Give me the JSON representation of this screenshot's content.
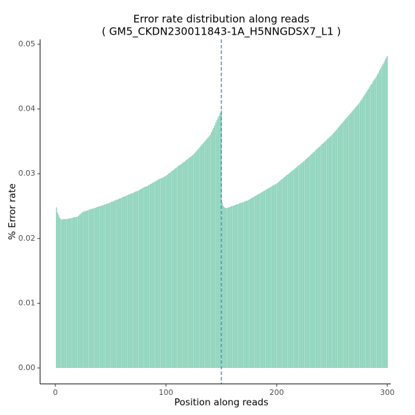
{
  "chart_data": {
    "type": "bar",
    "title": "Error rate distribution along reads",
    "subtitle": "( GM5_CKDN230011843-1A_H5NNGDSX7_L1 )",
    "xlabel": "Position along reads",
    "ylabel": "% Error rate",
    "color": "#8dd3bb",
    "vline": 150,
    "vline_color": "#3a80c8",
    "xlim": [
      -13.75,
      303.125
    ],
    "ylim": [
      -0.00246,
      0.05075
    ],
    "xticks": [
      0,
      100,
      200,
      300
    ],
    "yticks": [
      {
        "value": 0,
        "label": "0.00"
      },
      0.01,
      0.02,
      0.03,
      0.04,
      0.05
    ],
    "x": [
      1,
      2,
      3,
      4,
      5,
      6,
      7,
      8,
      9,
      10,
      11,
      12,
      13,
      14,
      15,
      16,
      17,
      18,
      19,
      20,
      21,
      22,
      23,
      24,
      25,
      26,
      27,
      28,
      29,
      30,
      31,
      32,
      33,
      34,
      35,
      36,
      37,
      38,
      39,
      40,
      41,
      42,
      43,
      44,
      45,
      46,
      47,
      48,
      49,
      50,
      51,
      52,
      53,
      54,
      55,
      56,
      57,
      58,
      59,
      60,
      61,
      62,
      63,
      64,
      65,
      66,
      67,
      68,
      69,
      70,
      71,
      72,
      73,
      74,
      75,
      76,
      77,
      78,
      79,
      80,
      81,
      82,
      83,
      84,
      85,
      86,
      87,
      88,
      89,
      90,
      91,
      92,
      93,
      94,
      95,
      96,
      97,
      98,
      99,
      100,
      101,
      102,
      103,
      104,
      105,
      106,
      107,
      108,
      109,
      110,
      111,
      112,
      113,
      114,
      115,
      116,
      117,
      118,
      119,
      120,
      121,
      122,
      123,
      124,
      125,
      126,
      127,
      128,
      129,
      130,
      131,
      132,
      133,
      134,
      135,
      136,
      137,
      138,
      139,
      140,
      141,
      142,
      143,
      144,
      145,
      146,
      147,
      148,
      149,
      150,
      151,
      152,
      153,
      154,
      155,
      156,
      157,
      158,
      159,
      160,
      161,
      162,
      163,
      164,
      165,
      166,
      167,
      168,
      169,
      170,
      171,
      172,
      173,
      174,
      175,
      176,
      177,
      178,
      179,
      180,
      181,
      182,
      183,
      184,
      185,
      186,
      187,
      188,
      189,
      190,
      191,
      192,
      193,
      194,
      195,
      196,
      197,
      198,
      199,
      200,
      201,
      202,
      203,
      204,
      205,
      206,
      207,
      208,
      209,
      210,
      211,
      212,
      213,
      214,
      215,
      216,
      217,
      218,
      219,
      220,
      221,
      222,
      223,
      224,
      225,
      226,
      227,
      228,
      229,
      230,
      231,
      232,
      233,
      234,
      235,
      236,
      237,
      238,
      239,
      240,
      241,
      242,
      243,
      244,
      245,
      246,
      247,
      248,
      249,
      250,
      251,
      252,
      253,
      254,
      255,
      256,
      257,
      258,
      259,
      260,
      261,
      262,
      263,
      264,
      265,
      266,
      267,
      268,
      269,
      270,
      271,
      272,
      273,
      274,
      275,
      276,
      277,
      278,
      279,
      280,
      281,
      282,
      283,
      284,
      285,
      286,
      287,
      288,
      289,
      290,
      291,
      292,
      293,
      294,
      295,
      296,
      297,
      298,
      299,
      300
    ],
    "values": [
      0.0248,
      0.024,
      0.0236,
      0.0232,
      0.023,
      0.0229,
      0.023,
      0.023,
      0.023,
      0.023,
      0.023,
      0.0231,
      0.0231,
      0.0231,
      0.0232,
      0.0232,
      0.0233,
      0.0233,
      0.0233,
      0.0234,
      0.0235,
      0.0237,
      0.0238,
      0.024,
      0.0241,
      0.0242,
      0.0242,
      0.0243,
      0.0243,
      0.0244,
      0.0245,
      0.0245,
      0.0246,
      0.0246,
      0.0247,
      0.0247,
      0.0248,
      0.0249,
      0.0249,
      0.025,
      0.025,
      0.0251,
      0.0251,
      0.0252,
      0.0253,
      0.0253,
      0.0254,
      0.0254,
      0.0255,
      0.0256,
      0.0257,
      0.0257,
      0.0258,
      0.0259,
      0.026,
      0.026,
      0.0261,
      0.0262,
      0.0262,
      0.0263,
      0.0264,
      0.0265,
      0.0265,
      0.0266,
      0.0267,
      0.0268,
      0.0268,
      0.0269,
      0.027,
      0.027,
      0.0271,
      0.0272,
      0.0273,
      0.0273,
      0.0274,
      0.0275,
      0.0276,
      0.0277,
      0.0278,
      0.0279,
      0.028,
      0.028,
      0.0281,
      0.0282,
      0.0283,
      0.0284,
      0.0285,
      0.0286,
      0.0287,
      0.0288,
      0.0289,
      0.029,
      0.0291,
      0.0292,
      0.0293,
      0.0293,
      0.0294,
      0.0295,
      0.0296,
      0.0297,
      0.0298,
      0.03,
      0.0301,
      0.0302,
      0.0304,
      0.0305,
      0.0306,
      0.0308,
      0.0309,
      0.031,
      0.0312,
      0.0313,
      0.0314,
      0.0315,
      0.0317,
      0.0318,
      0.0319,
      0.0321,
      0.0322,
      0.0323,
      0.0325,
      0.0326,
      0.0327,
      0.0329,
      0.033,
      0.0332,
      0.0334,
      0.0336,
      0.0338,
      0.034,
      0.0342,
      0.0344,
      0.0346,
      0.0348,
      0.035,
      0.0352,
      0.0354,
      0.0356,
      0.0358,
      0.036,
      0.0364,
      0.0368,
      0.0371,
      0.0375,
      0.0379,
      0.0383,
      0.0387,
      0.039,
      0.0394,
      0.0398,
      0.0255,
      0.025,
      0.0248,
      0.0247,
      0.0247,
      0.0248,
      0.0248,
      0.0249,
      0.025,
      0.025,
      0.0251,
      0.0251,
      0.0252,
      0.0253,
      0.0253,
      0.0254,
      0.0255,
      0.0255,
      0.0256,
      0.0256,
      0.0257,
      0.0258,
      0.0258,
      0.0259,
      0.026,
      0.0261,
      0.0262,
      0.0263,
      0.0264,
      0.0265,
      0.0266,
      0.0267,
      0.0268,
      0.0269,
      0.027,
      0.0271,
      0.0272,
      0.0273,
      0.0274,
      0.0275,
      0.0276,
      0.0277,
      0.0278,
      0.0279,
      0.028,
      0.0281,
      0.0282,
      0.0283,
      0.0284,
      0.0285,
      0.0286,
      0.0288,
      0.0289,
      0.0291,
      0.0292,
      0.0293,
      0.0295,
      0.0296,
      0.0298,
      0.0299,
      0.03,
      0.0302,
      0.0303,
      0.0305,
      0.0306,
      0.0307,
      0.0309,
      0.031,
      0.0312,
      0.0313,
      0.0314,
      0.0316,
      0.0317,
      0.0319,
      0.032,
      0.0322,
      0.0323,
      0.0325,
      0.0326,
      0.0328,
      0.033,
      0.0331,
      0.0333,
      0.0334,
      0.0336,
      0.0338,
      0.0339,
      0.0341,
      0.0342,
      0.0344,
      0.0346,
      0.0347,
      0.0349,
      0.035,
      0.0352,
      0.0354,
      0.0355,
      0.0357,
      0.0358,
      0.036,
      0.0362,
      0.0364,
      0.0366,
      0.0368,
      0.037,
      0.0372,
      0.0374,
      0.0376,
      0.0378,
      0.038,
      0.0382,
      0.0384,
      0.0386,
      0.0388,
      0.039,
      0.0392,
      0.0394,
      0.0396,
      0.0398,
      0.04,
      0.0402,
      0.0404,
      0.0406,
      0.0408,
      0.041,
      0.0413,
      0.0415,
      0.0418,
      0.0421,
      0.0423,
      0.0426,
      0.0429,
      0.0431,
      0.0434,
      0.0437,
      0.0439,
      0.0442,
      0.0445,
      0.0447,
      0.045,
      0.0453,
      0.0456,
      0.046,
      0.0463,
      0.0466,
      0.0469,
      0.0472,
      0.0476,
      0.0479,
      0.0482
    ]
  }
}
